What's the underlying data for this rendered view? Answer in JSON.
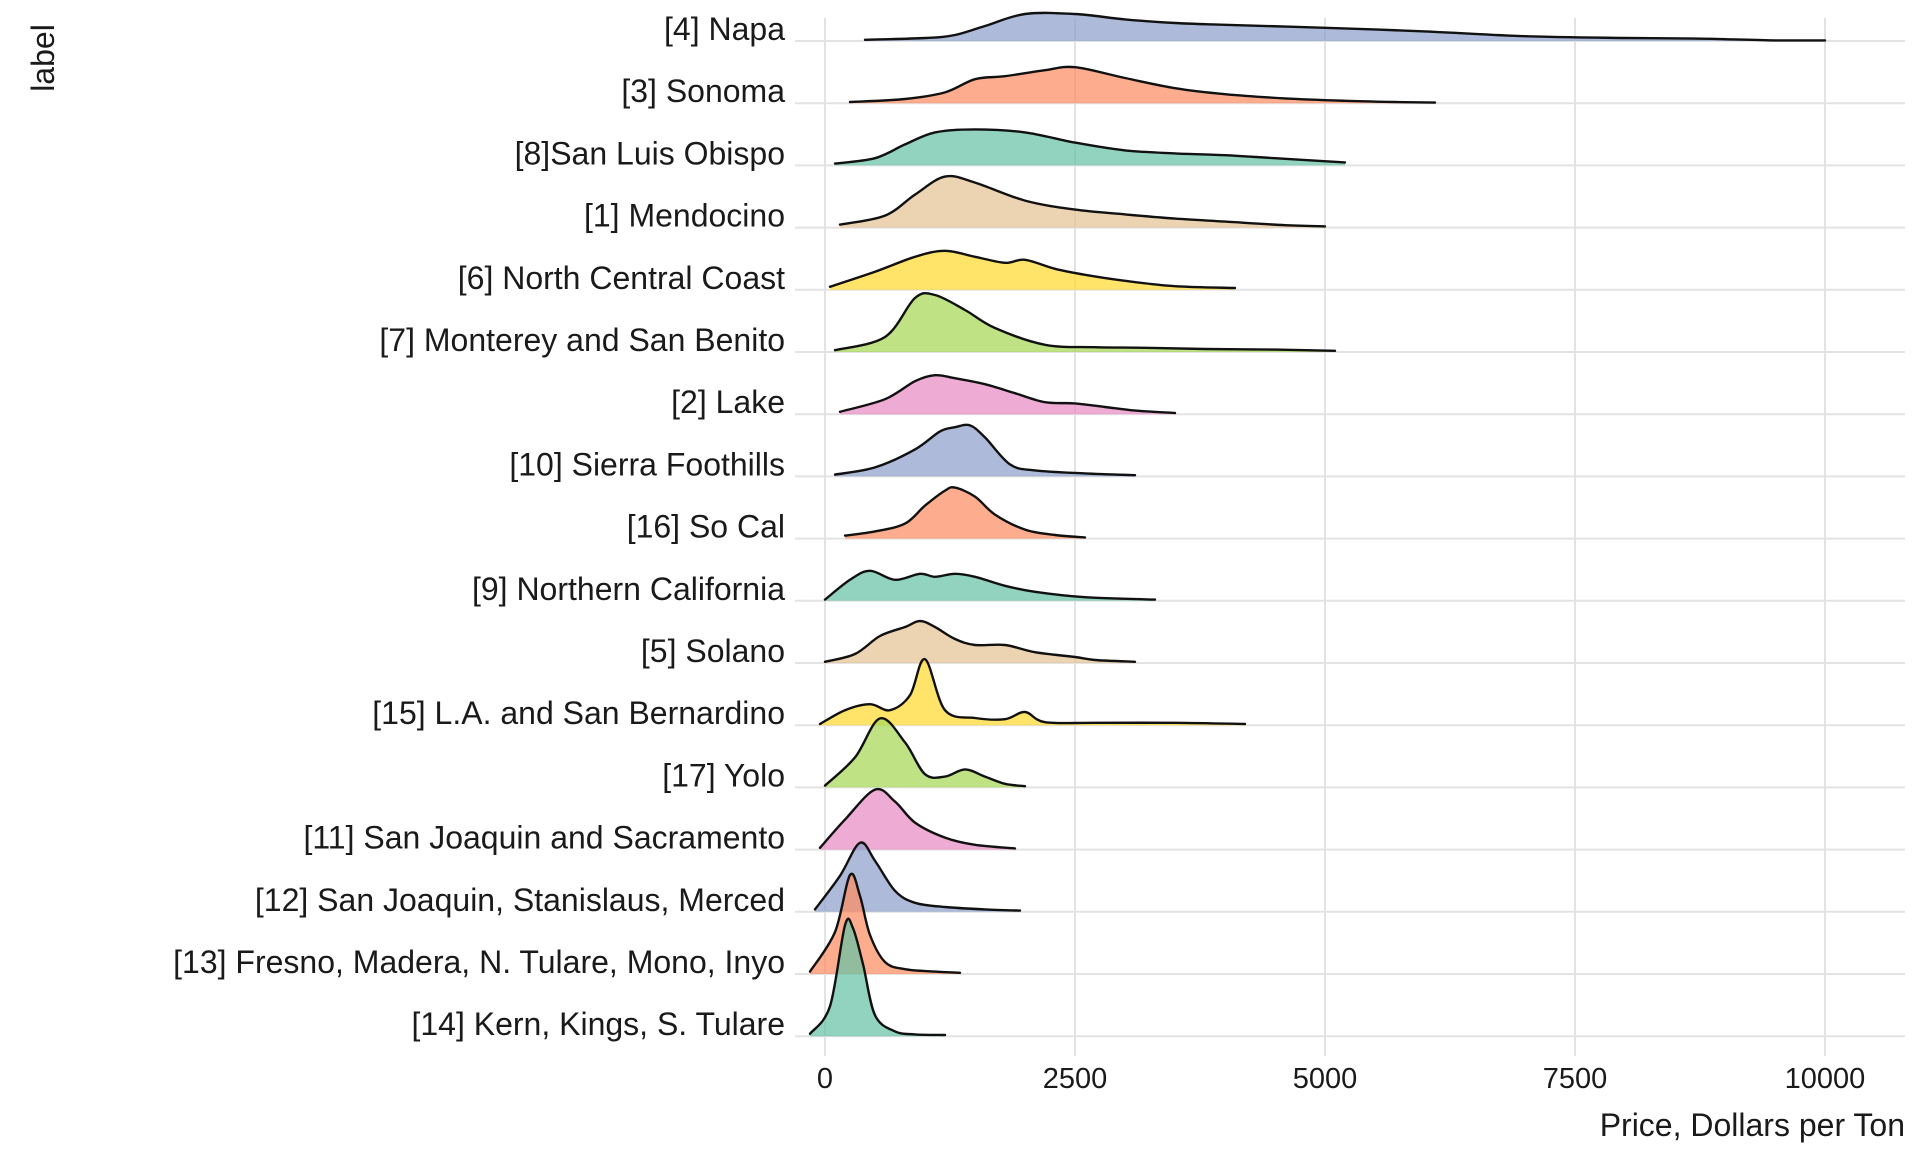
{
  "chart_data": {
    "type": "ridgeline",
    "xlabel": "Price, Dollars per Ton",
    "ylabel": "label",
    "xlim": [
      -300,
      10800
    ],
    "xticks": [
      0,
      2500,
      5000,
      7500,
      10000
    ],
    "xtick_labels": [
      "0",
      "2500",
      "5000",
      "7500",
      "10000"
    ],
    "grid": true,
    "legend": "none",
    "series": [
      {
        "name": "[4] Napa",
        "color": "#8da0cb",
        "x": [
          400,
          1000,
          1300,
          1600,
          2000,
          2500,
          3000,
          3500,
          4000,
          5000,
          6000,
          7000,
          8000,
          8700,
          9000,
          9500,
          10000
        ],
        "y": [
          0.02,
          0.05,
          0.1,
          0.25,
          0.45,
          0.45,
          0.36,
          0.3,
          0.27,
          0.22,
          0.16,
          0.08,
          0.05,
          0.04,
          0.03,
          0.01,
          0.01
        ]
      },
      {
        "name": "[3] Sonoma",
        "color": "#fc8d62",
        "x": [
          250,
          800,
          1200,
          1500,
          1800,
          2200,
          2500,
          3000,
          3500,
          4000,
          4600,
          5200,
          5700,
          6100
        ],
        "y": [
          0.02,
          0.07,
          0.18,
          0.4,
          0.45,
          0.55,
          0.6,
          0.42,
          0.25,
          0.15,
          0.08,
          0.04,
          0.02,
          0.01
        ]
      },
      {
        "name": "[8]San Luis Obispo",
        "color": "#66c2a5",
        "x": [
          100,
          500,
          800,
          1100,
          1500,
          2000,
          2500,
          3000,
          3500,
          4000,
          4500,
          5200
        ],
        "y": [
          0.03,
          0.12,
          0.35,
          0.55,
          0.6,
          0.55,
          0.38,
          0.25,
          0.2,
          0.17,
          0.12,
          0.05
        ]
      },
      {
        "name": "[1] Mendocino",
        "color": "#e5c494",
        "x": [
          150,
          600,
          900,
          1200,
          1500,
          2000,
          2500,
          3000,
          3500,
          4000,
          4600,
          5000
        ],
        "y": [
          0.05,
          0.2,
          0.55,
          0.85,
          0.75,
          0.45,
          0.3,
          0.22,
          0.15,
          0.1,
          0.04,
          0.02
        ]
      },
      {
        "name": "[6] North Central Coast",
        "color": "#ffd92f",
        "x": [
          50,
          500,
          900,
          1200,
          1500,
          1800,
          2000,
          2300,
          2600,
          3000,
          3500,
          4100
        ],
        "y": [
          0.05,
          0.3,
          0.55,
          0.65,
          0.55,
          0.45,
          0.5,
          0.35,
          0.25,
          0.15,
          0.06,
          0.03
        ]
      },
      {
        "name": "[7] Monterey and San Benito",
        "color": "#a6d854",
        "x": [
          100,
          600,
          900,
          1100,
          1400,
          1700,
          2200,
          2700,
          3200,
          3800,
          4500,
          5100
        ],
        "y": [
          0.03,
          0.25,
          0.9,
          0.95,
          0.7,
          0.4,
          0.12,
          0.08,
          0.07,
          0.05,
          0.04,
          0.02
        ]
      },
      {
        "name": "[2] Lake",
        "color": "#e78ac3",
        "x": [
          150,
          600,
          900,
          1100,
          1300,
          1600,
          1900,
          2200,
          2500,
          2800,
          3100,
          3500
        ],
        "y": [
          0.04,
          0.25,
          0.55,
          0.65,
          0.6,
          0.5,
          0.35,
          0.2,
          0.18,
          0.12,
          0.06,
          0.02
        ]
      },
      {
        "name": "[10] Sierra Foothills",
        "color": "#8da0cb",
        "x": [
          100,
          500,
          900,
          1150,
          1300,
          1450,
          1600,
          1850,
          2100,
          2600,
          3100
        ],
        "y": [
          0.03,
          0.15,
          0.45,
          0.75,
          0.82,
          0.85,
          0.65,
          0.2,
          0.1,
          0.05,
          0.02
        ]
      },
      {
        "name": "[16] So Cal",
        "color": "#fc8d62",
        "x": [
          200,
          500,
          800,
          1000,
          1200,
          1300,
          1500,
          1700,
          2000,
          2300,
          2600
        ],
        "y": [
          0.05,
          0.12,
          0.25,
          0.55,
          0.8,
          0.85,
          0.7,
          0.4,
          0.15,
          0.06,
          0.02
        ]
      },
      {
        "name": "[9] Northern California",
        "color": "#66c2a5",
        "x": [
          0,
          250,
          450,
          700,
          950,
          1100,
          1300,
          1500,
          1800,
          2100,
          2600,
          3300
        ],
        "y": [
          0.02,
          0.35,
          0.5,
          0.35,
          0.45,
          0.4,
          0.45,
          0.4,
          0.25,
          0.15,
          0.06,
          0.02
        ]
      },
      {
        "name": "[5] Solano",
        "color": "#e5c494",
        "x": [
          0,
          300,
          550,
          800,
          950,
          1100,
          1300,
          1500,
          1800,
          2100,
          2500,
          2700,
          3100
        ],
        "y": [
          0.02,
          0.15,
          0.45,
          0.6,
          0.7,
          0.6,
          0.4,
          0.3,
          0.3,
          0.18,
          0.1,
          0.05,
          0.02
        ]
      },
      {
        "name": "[15] L.A. and San Bernardino",
        "color": "#ffd92f",
        "x": [
          -50,
          200,
          450,
          650,
          850,
          1000,
          1200,
          1500,
          1800,
          2000,
          2200,
          2700,
          3500,
          4200
        ],
        "y": [
          0.02,
          0.25,
          0.35,
          0.25,
          0.5,
          1.1,
          0.25,
          0.12,
          0.1,
          0.22,
          0.05,
          0.04,
          0.04,
          0.02
        ]
      },
      {
        "name": "[17] Yolo",
        "color": "#a6d854",
        "x": [
          0,
          300,
          550,
          800,
          1000,
          1200,
          1400,
          1600,
          1800,
          2000
        ],
        "y": [
          0.03,
          0.5,
          1.15,
          0.75,
          0.22,
          0.18,
          0.3,
          0.18,
          0.06,
          0.02
        ]
      },
      {
        "name": "[11] San Joaquin and Sacramento",
        "color": "#e78ac3",
        "x": [
          -50,
          200,
          500,
          700,
          900,
          1200,
          1500,
          1900
        ],
        "y": [
          0.03,
          0.5,
          1.0,
          0.8,
          0.45,
          0.2,
          0.08,
          0.02
        ]
      },
      {
        "name": "[12] San Joaquin, Stanislaus, Merced",
        "color": "#8da0cb",
        "x": [
          -100,
          150,
          350,
          500,
          700,
          900,
          1200,
          1600,
          1950
        ],
        "y": [
          0.04,
          0.6,
          1.15,
          0.85,
          0.35,
          0.15,
          0.08,
          0.04,
          0.02
        ]
      },
      {
        "name": "[13] Fresno, Madera, N. Tulare, Mono, Inyo",
        "color": "#fc8d62",
        "x": [
          -150,
          100,
          250,
          350,
          450,
          600,
          800,
          1100,
          1350
        ],
        "y": [
          0.04,
          0.7,
          1.65,
          1.3,
          0.65,
          0.2,
          0.08,
          0.04,
          0.02
        ]
      },
      {
        "name": "[14] Kern, Kings, S. Tulare",
        "color": "#66c2a5",
        "x": [
          -150,
          50,
          200,
          280,
          380,
          500,
          700,
          900,
          1200
        ],
        "y": [
          0.04,
          0.5,
          1.85,
          1.8,
          1.2,
          0.35,
          0.08,
          0.03,
          0.02
        ]
      }
    ]
  }
}
